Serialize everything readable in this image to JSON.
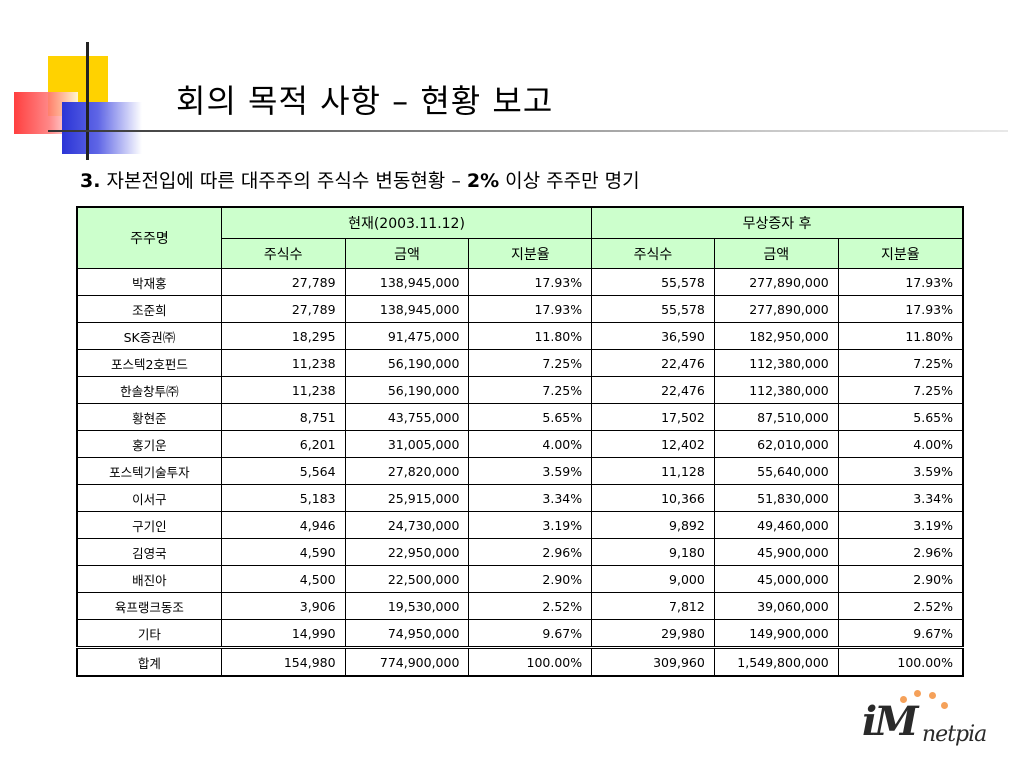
{
  "slide": {
    "title": "회의 목적 사항 – 현황 보고",
    "subtitle_number": "3.",
    "subtitle_main": " 자본전입에 따른 대주주의 주식수 변동현황 – ",
    "subtitle_pct": "2%",
    "subtitle_tail": " 이상 주주만 명기"
  },
  "table": {
    "col_name": "주주명",
    "group_current": "현재(2003.11.12)",
    "group_after": "무상증자 후",
    "sub_headers": [
      "주식수",
      "금액",
      "지분율",
      "주식수",
      "금액",
      "지분율"
    ],
    "rows": [
      {
        "name": "박재홍",
        "c_shares": "27,789",
        "c_amount": "138,945,000",
        "c_pct": "17.93%",
        "a_shares": "55,578",
        "a_amount": "277,890,000",
        "a_pct": "17.93%"
      },
      {
        "name": "조준희",
        "c_shares": "27,789",
        "c_amount": "138,945,000",
        "c_pct": "17.93%",
        "a_shares": "55,578",
        "a_amount": "277,890,000",
        "a_pct": "17.93%"
      },
      {
        "name": "SK증권㈜",
        "c_shares": "18,295",
        "c_amount": "91,475,000",
        "c_pct": "11.80%",
        "a_shares": "36,590",
        "a_amount": "182,950,000",
        "a_pct": "11.80%"
      },
      {
        "name": "포스텍2호펀드",
        "c_shares": "11,238",
        "c_amount": "56,190,000",
        "c_pct": "7.25%",
        "a_shares": "22,476",
        "a_amount": "112,380,000",
        "a_pct": "7.25%"
      },
      {
        "name": "한솔창투㈜",
        "c_shares": "11,238",
        "c_amount": "56,190,000",
        "c_pct": "7.25%",
        "a_shares": "22,476",
        "a_amount": "112,380,000",
        "a_pct": "7.25%"
      },
      {
        "name": "황현준",
        "c_shares": "8,751",
        "c_amount": "43,755,000",
        "c_pct": "5.65%",
        "a_shares": "17,502",
        "a_amount": "87,510,000",
        "a_pct": "5.65%"
      },
      {
        "name": "홍기운",
        "c_shares": "6,201",
        "c_amount": "31,005,000",
        "c_pct": "4.00%",
        "a_shares": "12,402",
        "a_amount": "62,010,000",
        "a_pct": "4.00%"
      },
      {
        "name": "포스텍기술투자",
        "c_shares": "5,564",
        "c_amount": "27,820,000",
        "c_pct": "3.59%",
        "a_shares": "11,128",
        "a_amount": "55,640,000",
        "a_pct": "3.59%"
      },
      {
        "name": "이서구",
        "c_shares": "5,183",
        "c_amount": "25,915,000",
        "c_pct": "3.34%",
        "a_shares": "10,366",
        "a_amount": "51,830,000",
        "a_pct": "3.34%"
      },
      {
        "name": "구기인",
        "c_shares": "4,946",
        "c_amount": "24,730,000",
        "c_pct": "3.19%",
        "a_shares": "9,892",
        "a_amount": "49,460,000",
        "a_pct": "3.19%"
      },
      {
        "name": "김영국",
        "c_shares": "4,590",
        "c_amount": "22,950,000",
        "c_pct": "2.96%",
        "a_shares": "9,180",
        "a_amount": "45,900,000",
        "a_pct": "2.96%"
      },
      {
        "name": "배진아",
        "c_shares": "4,500",
        "c_amount": "22,500,000",
        "c_pct": "2.90%",
        "a_shares": "9,000",
        "a_amount": "45,000,000",
        "a_pct": "2.90%"
      },
      {
        "name": "육프랭크동조",
        "c_shares": "3,906",
        "c_amount": "19,530,000",
        "c_pct": "2.52%",
        "a_shares": "7,812",
        "a_amount": "39,060,000",
        "a_pct": "2.52%"
      },
      {
        "name": "기타",
        "c_shares": "14,990",
        "c_amount": "74,950,000",
        "c_pct": "9.67%",
        "a_shares": "29,980",
        "a_amount": "149,900,000",
        "a_pct": "9.67%"
      }
    ],
    "total": {
      "name": "합계",
      "c_shares": "154,980",
      "c_amount": "774,900,000",
      "c_pct": "100.00%",
      "a_shares": "309,960",
      "a_amount": "1,549,800,000",
      "a_pct": "100.00%"
    }
  },
  "logo": {
    "brand_a": "iM",
    "brand_b": "netpia",
    "icon": "netpia-logo"
  },
  "colors": {
    "header_bg": "#ccffcc",
    "accent_yellow": "#ffd200",
    "accent_red": "#ff2a2a",
    "accent_blue": "#2b35d6",
    "logo_dots": "#f5a15a"
  }
}
